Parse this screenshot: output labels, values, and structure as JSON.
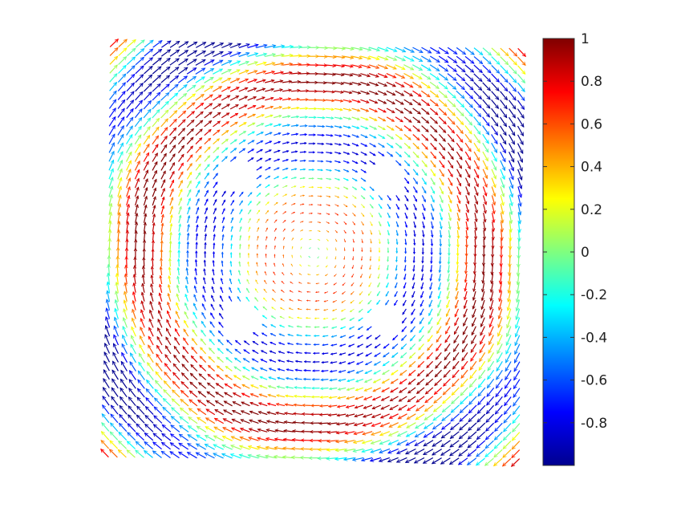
{
  "chart_data": {
    "type": "quiver",
    "title": "",
    "xlabel": "",
    "ylabel": "",
    "grid": false,
    "field": "rotational swirl about the centre on a square domain; four circular holes near the centre; arrows colour-coded by scalar value",
    "colorbar": {
      "colormap": "jet",
      "range": [
        -1,
        1
      ],
      "ticks": [
        "1",
        "0.8",
        "0.6",
        "0.4",
        "0.2",
        "0",
        "-0.2",
        "-0.4",
        "-0.6",
        "-0.8"
      ],
      "location": "right"
    },
    "colormap_stops": [
      "#00008f",
      "#0000ff",
      "#00ffff",
      "#ffff00",
      "#ff0000",
      "#800000"
    ]
  }
}
